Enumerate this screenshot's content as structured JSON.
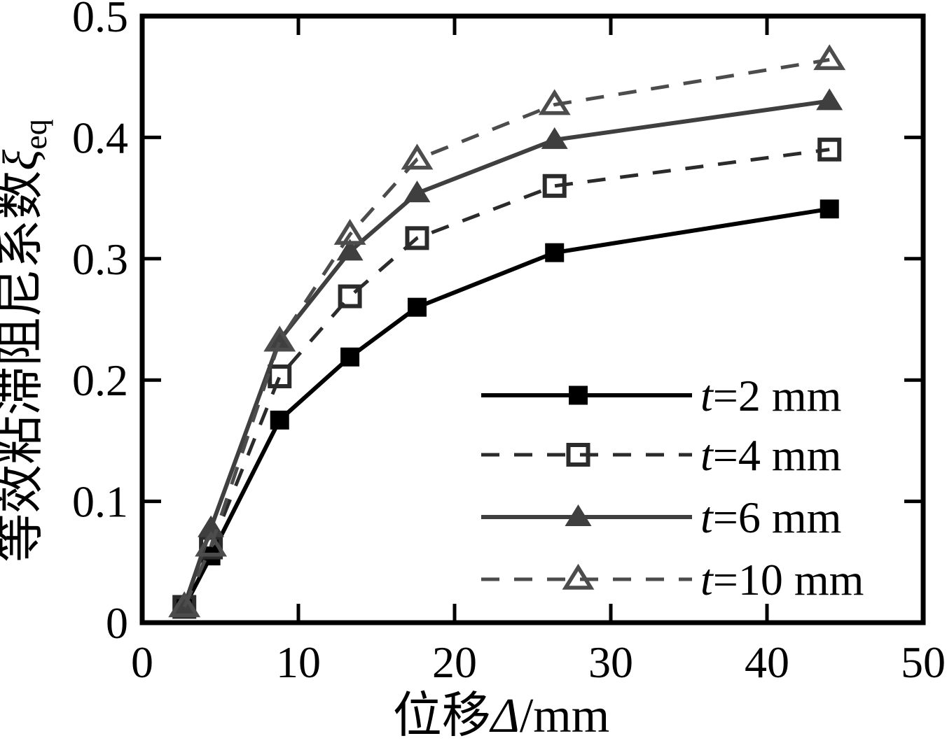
{
  "chart_data": {
    "type": "line",
    "title": "",
    "xlabel": {
      "prefix": "位移",
      "symbol": "Δ",
      "suffix": "/mm"
    },
    "ylabel": {
      "prefix": "等效粘滞阻尼系数",
      "symbol": "ξ",
      "subscript": "eq"
    },
    "xlim": [
      0,
      50
    ],
    "ylim": [
      0,
      0.5
    ],
    "xticks": [
      0,
      10,
      20,
      30,
      40,
      50
    ],
    "xtick_labels": [
      "0",
      "10",
      "20",
      "30",
      "40",
      "50"
    ],
    "yticks": [
      0,
      0.1,
      0.2,
      0.3,
      0.4,
      0.5
    ],
    "ytick_labels": [
      "0",
      "0.1",
      "0.2",
      "0.3",
      "0.4",
      "0.5"
    ],
    "grid": false,
    "legend_position": "right-center-inside",
    "x": [
      2.7,
      4.4,
      8.8,
      13.3,
      17.6,
      26.4,
      44.0
    ],
    "series": [
      {
        "name": "t=2 mm",
        "label_var": "t",
        "label_rest": "=2 mm",
        "line": "solid",
        "marker": "square-filled",
        "color": "#000000",
        "values": [
          0.013,
          0.055,
          0.167,
          0.219,
          0.26,
          0.305,
          0.341
        ]
      },
      {
        "name": "t=4 mm",
        "label_var": "t",
        "label_rest": "=4 mm",
        "line": "dashed",
        "marker": "square-open",
        "color": "#2b2b2b",
        "values": [
          0.013,
          0.062,
          0.203,
          0.269,
          0.317,
          0.36,
          0.39
        ]
      },
      {
        "name": "t=6 mm",
        "label_var": "t",
        "label_rest": "=6 mm",
        "line": "solid",
        "marker": "triangle-filled",
        "color": "#3f3f3f",
        "values": [
          0.014,
          0.078,
          0.233,
          0.306,
          0.354,
          0.398,
          0.43
        ]
      },
      {
        "name": "t=10 mm",
        "label_var": "t",
        "label_rest": "=10 mm",
        "line": "dashed",
        "marker": "triangle-open",
        "color": "#4c4c4c",
        "values": [
          0.013,
          0.063,
          0.232,
          0.32,
          0.382,
          0.427,
          0.464
        ]
      }
    ]
  }
}
